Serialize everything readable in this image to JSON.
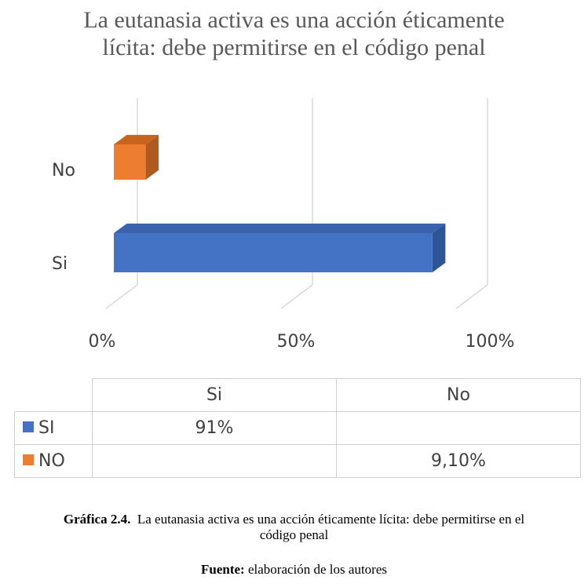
{
  "chart_data": {
    "type": "bar",
    "orientation": "horizontal",
    "three_d": true,
    "title": "La eutanasia activa es una acción éticamente lícita: debe permitirse en el código penal",
    "title_lines": [
      "La eutanasia activa es una acción éticamente",
      "lícita: debe permitirse en el código penal"
    ],
    "categories": [
      "No",
      "Si"
    ],
    "series": [
      {
        "name": "SI",
        "color": "#4472c4",
        "values": [
          null,
          91
        ]
      },
      {
        "name": "NO",
        "color": "#ed7d31",
        "values": [
          9.1,
          null
        ]
      }
    ],
    "x_ticks": [
      "0%",
      "50%",
      "100%"
    ],
    "xlim": [
      0,
      100
    ],
    "grid": true,
    "data_table": {
      "columns": [
        "Si",
        "No"
      ],
      "rows": [
        {
          "label": "SI",
          "cells": [
            "91%",
            ""
          ]
        },
        {
          "label": "NO",
          "cells": [
            "",
            "9,10%"
          ]
        }
      ]
    }
  },
  "caption": {
    "label": "Gráfica 2.4.",
    "line1": "La eutanasia activa es una acción éticamente lícita: debe permitirse en el",
    "line2": "código penal",
    "source_label": "Fuente:",
    "source_text": "elaboración de los autores"
  }
}
